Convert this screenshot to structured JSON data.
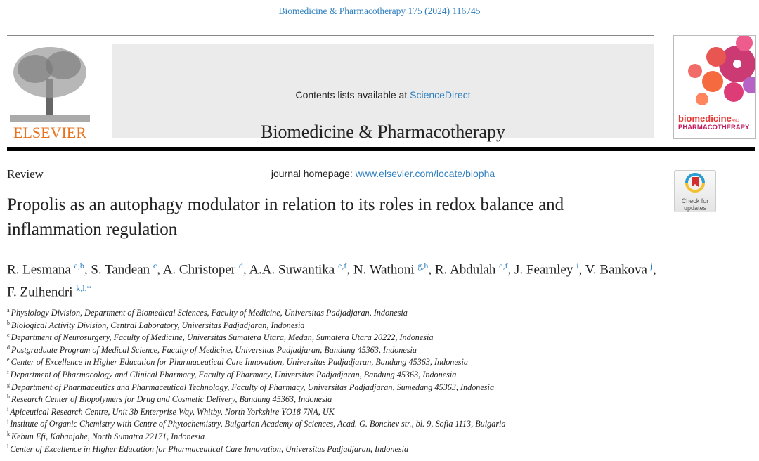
{
  "citation": "Biomedicine & Pharmacotherapy 175 (2024) 116745",
  "header": {
    "contents_prefix": "Contents lists available at ",
    "sciencedirect": "ScienceDirect",
    "journal_title": "Biomedicine & Pharmacotherapy",
    "homepage_prefix": "journal homepage: ",
    "homepage_url": "www.elsevier.com/locate/biopha",
    "publisher_logo": "ELSEVIER",
    "cover_title_1": "biomedicine",
    "cover_title_and": "AND",
    "cover_title_2": "PHARMACOTHERAPY"
  },
  "check_updates": {
    "label_1": "Check for",
    "label_2": "updates"
  },
  "article_type": "Review",
  "title": "Propolis as an autophagy modulator in relation to its roles in redox balance and inflammation regulation",
  "authors": [
    {
      "name": "R. Lesmana",
      "aff": "a,b"
    },
    {
      "name": "S. Tandean",
      "aff": "c"
    },
    {
      "name": "A. Christoper",
      "aff": "d"
    },
    {
      "name": "A.A. Suwantika",
      "aff": "e,f"
    },
    {
      "name": "N. Wathoni",
      "aff": "g,h"
    },
    {
      "name": "R. Abdulah",
      "aff": "e,f"
    },
    {
      "name": "J. Fearnley",
      "aff": "i"
    },
    {
      "name": "V. Bankova",
      "aff": "j"
    },
    {
      "name": "F. Zulhendri",
      "aff": "k,l,*"
    }
  ],
  "affiliations": [
    {
      "key": "a",
      "text": "Physiology Division, Department of Biomedical Sciences, Faculty of Medicine, Universitas Padjadjaran, Indonesia"
    },
    {
      "key": "b",
      "text": "Biological Activity Division, Central Laboratory, Universitas Padjadjaran, Indonesia"
    },
    {
      "key": "c",
      "text": "Department of Neurosurgery, Faculty of Medicine, Universitas Sumatera Utara, Medan, Sumatera Utara 20222, Indonesia"
    },
    {
      "key": "d",
      "text": "Postgraduate Program of Medical Science, Faculty of Medicine, Universitas Padjadjaran, Bandung 45363, Indonesia"
    },
    {
      "key": "e",
      "text": "Center of Excellence in Higher Education for Pharmaceutical Care Innovation, Universitas Padjadjaran, Bandung 45363, Indonesia"
    },
    {
      "key": "f",
      "text": "Department of Pharmacology and Clinical Pharmacy, Faculty of Pharmacy, Universitas Padjadjaran, Bandung 45363, Indonesia"
    },
    {
      "key": "g",
      "text": "Department of Pharmaceutics and Pharmaceutical Technology, Faculty of Pharmacy, Universitas Padjadjaran, Sumedang 45363, Indonesia"
    },
    {
      "key": "h",
      "text": "Research Center of Biopolymers for Drug and Cosmetic Delivery, Bandung 45363, Indonesia"
    },
    {
      "key": "i",
      "text": "Apiceutical Research Centre, Unit 3b Enterprise Way, Whitby, North Yorkshire YO18 7NA, UK"
    },
    {
      "key": "j",
      "text": "Institute of Organic Chemistry with Centre of Phytochemistry, Bulgarian Academy of Sciences, Acad. G. Bonchev str., bl. 9, Sofia 1113, Bulgaria"
    },
    {
      "key": "k",
      "text": "Kebun Efi, Kabanjahe, North Sumatra 22171, Indonesia"
    },
    {
      "key": "l",
      "text": "Center of Excellence in Higher Education for Pharmaceutical Care Innovation, Universitas Padjadjaran, Indonesia"
    }
  ],
  "colors": {
    "link": "#2e7fbf",
    "elsevier_orange": "#e9711c",
    "header_gray": "#ebebeb"
  }
}
